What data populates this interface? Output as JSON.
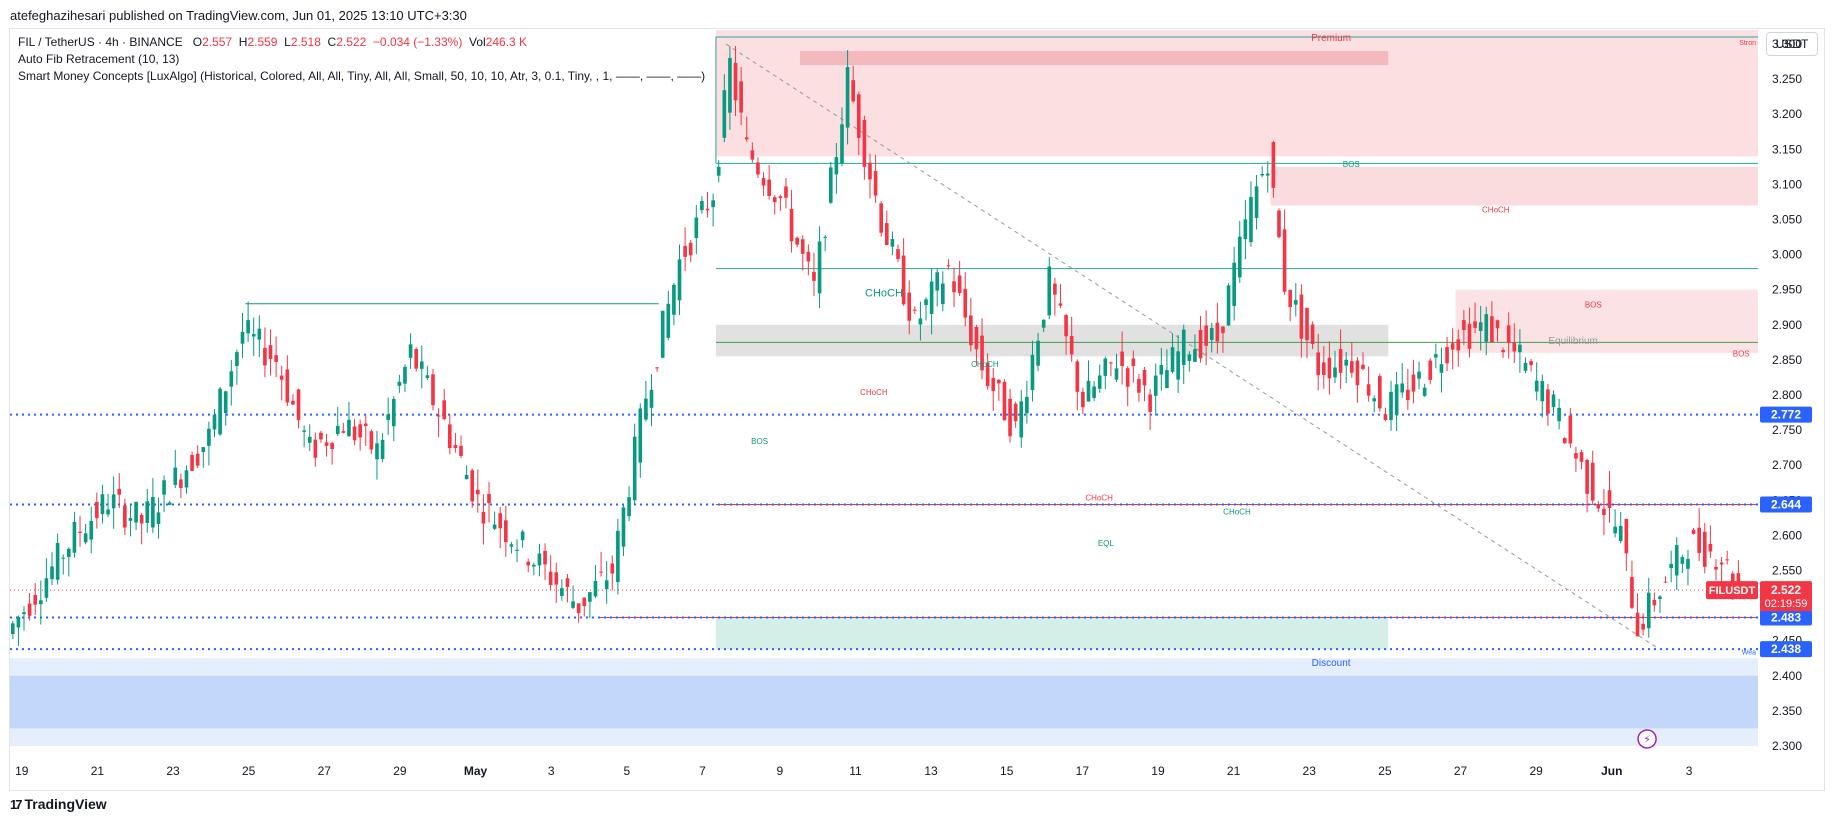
{
  "publisher_line": "atefeghazihesari published on TradingView.com, Jun 01, 2025 13:10 UTC+3:30",
  "legend": {
    "symbol": "FIL / TetherUS · 4h · BINANCE",
    "open_key": "O",
    "open": "2.557",
    "high_key": "H",
    "high": "2.559",
    "low_key": "L",
    "low": "2.518",
    "close_key": "C",
    "close": "2.522",
    "change": "−0.034 (−1.33%)",
    "vol_key": "Vol",
    "vol": "246.3 K",
    "indicator_1": "Auto Fib Retracement (10, 13)",
    "indicator_2": "Smart Money Concepts [LuxAlgo] (Historical, Colored, All, All, Tiny, All, All, Small, 50, 10, 10, Atr, 3, 0.1, Tiny, , 1, ——, ——, ——)"
  },
  "currency": "USDT",
  "brand": {
    "logo": "17",
    "name": "TradingView"
  },
  "colors": {
    "up": "#089981",
    "down": "#f23645",
    "blue": "#2962ff",
    "premium_zone": "#f7c5c9",
    "discount_zone": "#cfe0fb",
    "equilibrium_zone": "#d9d9d9",
    "discount_green": "#c8ebe1"
  },
  "chart_data": {
    "type": "candlestick",
    "symbol_tag": "FILUSDT",
    "current_price": "2.522",
    "countdown": "02:19:59",
    "ylim": [
      2.28,
      3.32
    ],
    "y_ticks": [
      "3.300",
      "3.250",
      "3.200",
      "3.150",
      "3.100",
      "3.050",
      "3.000",
      "2.950",
      "2.900",
      "2.850",
      "2.800",
      "2.750",
      "2.700",
      "2.650",
      "2.600",
      "2.550",
      "2.500",
      "2.450",
      "2.400",
      "2.350",
      "2.300"
    ],
    "x_ticks": [
      "19",
      "21",
      "23",
      "25",
      "27",
      "29",
      "May",
      "3",
      "5",
      "7",
      "9",
      "11",
      "13",
      "15",
      "17",
      "19",
      "21",
      "23",
      "25",
      "27",
      "29",
      "Jun",
      "3"
    ],
    "price_levels": [
      {
        "label": "2.772",
        "value": 2.772
      },
      {
        "label": "2.644",
        "value": 2.644
      },
      {
        "label": "2.483",
        "value": 2.483
      },
      {
        "label": "2.438",
        "value": 2.438
      }
    ],
    "zone_labels": {
      "premium": "Premium",
      "equilibrium": "Equilibrium",
      "discount": "Discount",
      "strong_high": "Stron",
      "weak_low": "Wea"
    },
    "structure_labels": [
      {
        "text": "CHoCH",
        "kind": "up",
        "x": 26.0,
        "y": 2.94
      },
      {
        "text": "BOS",
        "kind": "up",
        "x": 22.3,
        "y": 2.73
      },
      {
        "text": "CHoCH",
        "kind": "down",
        "x": 25.7,
        "y": 2.8
      },
      {
        "text": "CHoCH",
        "kind": "up",
        "x": 29.0,
        "y": 2.84
      },
      {
        "text": "CHoCH",
        "kind": "down",
        "x": 32.4,
        "y": 2.65
      },
      {
        "text": "EQL",
        "kind": "up",
        "x": 32.6,
        "y": 2.585
      },
      {
        "text": "CHoCH",
        "kind": "up",
        "x": 36.5,
        "y": 2.63
      },
      {
        "text": "BOS",
        "kind": "up",
        "x": 39.9,
        "y": 3.125
      },
      {
        "text": "CHoCH",
        "kind": "down",
        "x": 44.2,
        "y": 3.06
      },
      {
        "text": "BOS",
        "kind": "down",
        "x": 47.1,
        "y": 2.925
      },
      {
        "text": "BOS",
        "kind": "down",
        "x": 51.5,
        "y": 2.855
      },
      {
        "text": "CHoCH",
        "kind": "up",
        "x": 62.2,
        "y": 2.935
      },
      {
        "text": "EQL",
        "kind": "up",
        "x": 64.5,
        "y": 2.82
      },
      {
        "text": "CHoCH",
        "kind": "down",
        "x": 64.5,
        "y": 2.745
      },
      {
        "text": "CHoCH",
        "kind": "up",
        "x": 72.0,
        "y": 2.88
      },
      {
        "text": "CHoCH",
        "kind": "down",
        "x": 72.8,
        "y": 2.73
      },
      {
        "text": "CHoCH",
        "kind": "down",
        "x": 57.0,
        "y": 2.46
      }
    ],
    "key_points": [
      {
        "x": 0,
        "price": 2.46
      },
      {
        "x": 2,
        "price": 2.6
      },
      {
        "x": 3,
        "price": 2.65
      },
      {
        "x": 4,
        "price": 2.62
      },
      {
        "x": 5,
        "price": 2.68
      },
      {
        "x": 6,
        "price": 2.74
      },
      {
        "x": 7,
        "price": 2.89
      },
      {
        "x": 8,
        "price": 2.85
      },
      {
        "x": 9,
        "price": 2.72
      },
      {
        "x": 10,
        "price": 2.76
      },
      {
        "x": 11,
        "price": 2.72
      },
      {
        "x": 12,
        "price": 2.86
      },
      {
        "x": 13,
        "price": 2.76
      },
      {
        "x": 14,
        "price": 2.65
      },
      {
        "x": 15,
        "price": 2.6
      },
      {
        "x": 16,
        "price": 2.55
      },
      {
        "x": 17,
        "price": 2.5
      },
      {
        "x": 18,
        "price": 2.55
      },
      {
        "x": 19,
        "price": 2.8
      },
      {
        "x": 20,
        "price": 2.99
      },
      {
        "x": 21,
        "price": 3.09
      },
      {
        "x": 21.5,
        "price": 3.27
      },
      {
        "x": 22,
        "price": 3.15
      },
      {
        "x": 23,
        "price": 3.08
      },
      {
        "x": 24,
        "price": 2.95
      },
      {
        "x": 25,
        "price": 3.25
      },
      {
        "x": 26,
        "price": 3.05
      },
      {
        "x": 27,
        "price": 2.9
      },
      {
        "x": 28,
        "price": 2.98
      },
      {
        "x": 29,
        "price": 2.84
      },
      {
        "x": 30,
        "price": 2.75
      },
      {
        "x": 31,
        "price": 2.96
      },
      {
        "x": 32,
        "price": 2.79
      },
      {
        "x": 33,
        "price": 2.85
      },
      {
        "x": 34,
        "price": 2.8
      },
      {
        "x": 35,
        "price": 2.87
      },
      {
        "x": 36,
        "price": 2.88
      },
      {
        "x": 37,
        "price": 3.07
      },
      {
        "x": 37.5,
        "price": 3.14
      },
      {
        "x": 38,
        "price": 2.96
      },
      {
        "x": 39,
        "price": 2.84
      },
      {
        "x": 40,
        "price": 2.85
      },
      {
        "x": 41,
        "price": 2.78
      },
      {
        "x": 42,
        "price": 2.82
      },
      {
        "x": 43,
        "price": 2.88
      },
      {
        "x": 44,
        "price": 2.9
      },
      {
        "x": 45,
        "price": 2.85
      },
      {
        "x": 46,
        "price": 2.78
      },
      {
        "x": 47,
        "price": 2.68
      },
      {
        "x": 48,
        "price": 2.6
      },
      {
        "x": 48.5,
        "price": 2.47
      },
      {
        "x": 49,
        "price": 2.51
      },
      {
        "x": 50,
        "price": 2.59
      },
      {
        "x": 51,
        "price": 2.57
      },
      {
        "x": 51.5,
        "price": 2.522
      }
    ]
  }
}
